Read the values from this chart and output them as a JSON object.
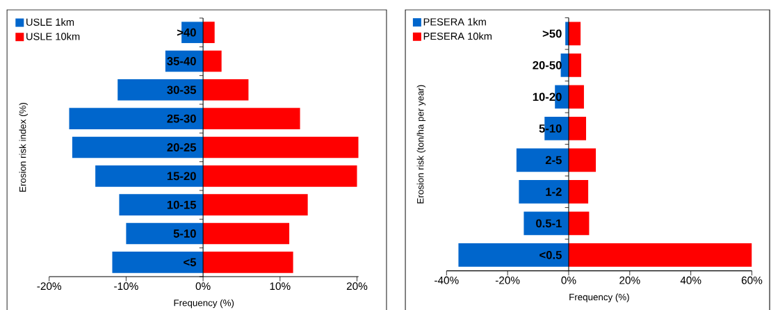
{
  "chart_data": [
    {
      "type": "bar",
      "orientation": "horizontal",
      "stacked": true,
      "xlabel": "Frequency (%)",
      "ylabel": "Erosion risk index (%)",
      "legend": "top left",
      "categories": [
        ">40",
        "35-40",
        "30-35",
        "25-30",
        "20-25",
        "15-20",
        "10-15",
        "5-10",
        "<5"
      ],
      "series": [
        {
          "name": "USLE 1km",
          "color": "#0066cc",
          "values": [
            -2.8,
            -4.9,
            -11.1,
            -17.4,
            -17.0,
            -14.0,
            -10.9,
            -10.0,
            -11.8
          ]
        },
        {
          "name": "USLE 10km",
          "color": "#ff0000",
          "values": [
            1.5,
            2.4,
            5.9,
            12.6,
            20.2,
            20.0,
            13.6,
            11.2,
            11.7
          ]
        }
      ],
      "xlim": [
        -20,
        20.2
      ],
      "xticks": [
        {
          "value": -20,
          "label": "-20%"
        },
        {
          "value": -10,
          "label": "-10%"
        },
        {
          "value": 0,
          "label": "0%"
        },
        {
          "value": 10,
          "label": "10%"
        },
        {
          "value": 20,
          "label": "20%"
        }
      ]
    },
    {
      "type": "bar",
      "orientation": "horizontal",
      "stacked": true,
      "xlabel": "Frequency (%)",
      "ylabel": "Erosion risk (ton/ha per year)",
      "legend": "top left",
      "categories": [
        ">50",
        "20-50",
        "10-20",
        "5-10",
        "2-5",
        "1-2",
        "0.5-1",
        "<0.5"
      ],
      "series": [
        {
          "name": "PESERA 1km",
          "color": "#0066cc",
          "values": [
            -1.1,
            -2.6,
            -4.5,
            -7.9,
            -17.1,
            -16.3,
            -14.7,
            -36.1
          ]
        },
        {
          "name": "PESERA 10km",
          "color": "#ff0000",
          "values": [
            3.9,
            4.1,
            5.0,
            5.7,
            8.9,
            6.4,
            6.7,
            60
          ]
        }
      ],
      "xlim": [
        -40,
        60
      ],
      "xticks": [
        {
          "value": -40,
          "label": "-40%"
        },
        {
          "value": -20,
          "label": "-20%"
        },
        {
          "value": 0,
          "label": "0%"
        },
        {
          "value": 20,
          "label": "20%"
        },
        {
          "value": 40,
          "label": "40%"
        },
        {
          "value": 60,
          "label": "60%"
        }
      ]
    }
  ]
}
